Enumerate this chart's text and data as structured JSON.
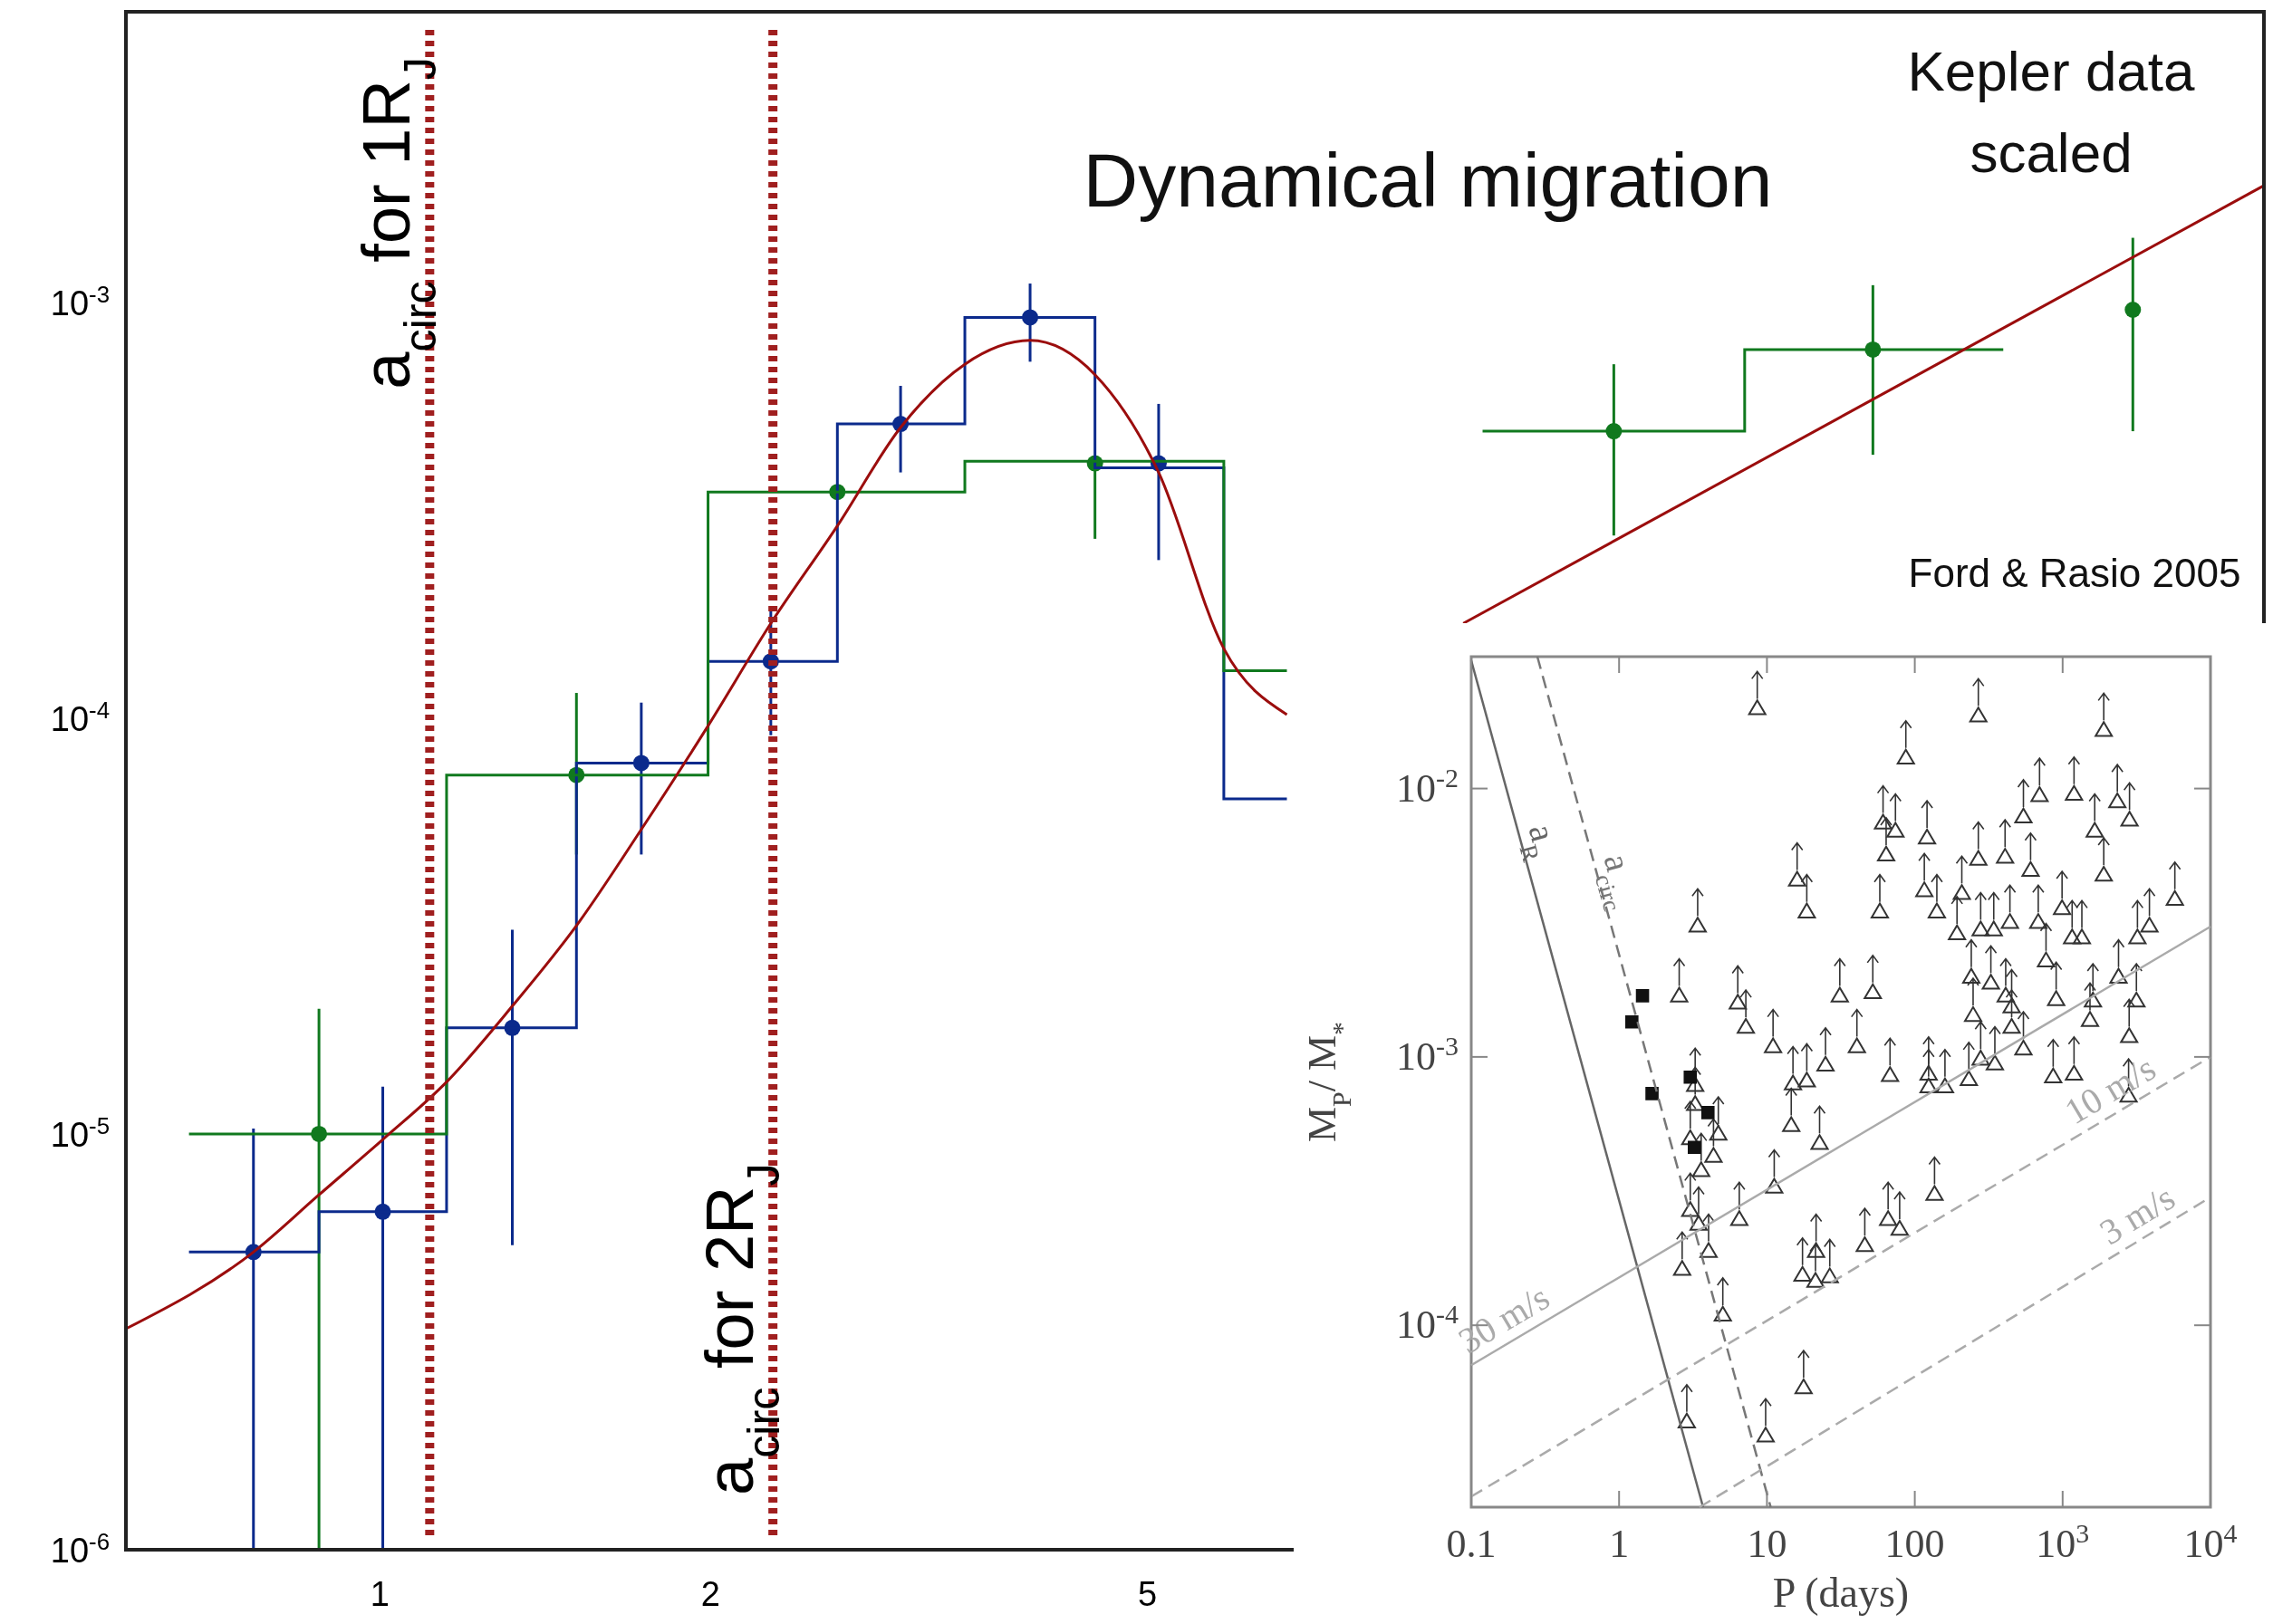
{
  "chart_data": [
    {
      "type": "line",
      "xlim": [
        0.587,
        52
      ],
      "ylim": [
        1e-06,
        0.005
      ],
      "log": "xy",
      "xticks": [
        1,
        2,
        5
      ],
      "yticks": [
        {
          "value": 1e-06,
          "label": "10$^{-6}$"
        },
        {
          "value": 1e-05,
          "label": "10$^{-5}$"
        },
        {
          "value": 0.0001,
          "label": "10$^{-4}$"
        },
        {
          "value": 0.001,
          "label": "10$^{-3}$"
        }
      ],
      "ref_lines": [
        {
          "axis": "x",
          "value": 1.11,
          "label": "a$_{circ}$ for 1R$_{J}$",
          "color": "#a01f1f",
          "line_style": "dotted"
        },
        {
          "axis": "x",
          "value": 2.28,
          "label": "a$_{circ}$ for 2R$_{J}$",
          "color": "#a01f1f",
          "line_style": "dotted"
        }
      ],
      "annotations": [
        "Dynamical migration",
        "Kepler data scaled",
        "Ford & Rasio 2005"
      ],
      "series": [
        {
          "type": "histogram",
          "color": "#0b2a8c",
          "bins": [
            0.67,
            0.88,
            1.15,
            1.51,
            1.99,
            2.61,
            3.41,
            4.48,
            5.87,
            6.7
          ],
          "values": [
            5.2e-06,
            6.5e-06,
            1.8e-05,
            7.8e-05,
            0.000137,
            0.00051,
            0.00092,
            0.0004,
            6.4e-05
          ]
        },
        {
          "type": "histogram",
          "color": "#10791e",
          "bins": [
            0.67,
            1.15,
            1.99,
            3.41,
            5.87,
            6.7
          ],
          "values": [
            1e-05,
            7.3e-05,
            0.00035,
            0.000415,
            0.00013
          ]
        },
        {
          "type": "histogram",
          "color": "#10791e",
          "bins": [
            10.1,
            17.5,
            30.1
          ],
          "values": [
            0.00049,
            0.00077
          ]
        },
        {
          "type": "line",
          "color": "#9b0d0d",
          "x": [
            0.587,
            0.767,
            0.878,
            1.006,
            1.152,
            1.32,
            1.514,
            1.73,
            1.986,
            2.27,
            2.61,
            2.98,
            3.41,
            3.91,
            4.48,
            5.12,
            5.87,
            6.7
          ],
          "values": [
            3.4e-06,
            5.2e-06,
            7.1e-06,
            9.7e-06,
            1.34e-05,
            2.03e-05,
            3.2e-05,
            5.4e-05,
            9.5e-05,
            0.000169,
            0.00029,
            0.0005,
            0.00071,
            0.00081,
            0.00067,
            0.00039,
            0.000147,
            0.000102
          ]
        },
        {
          "type": "line",
          "color": "#9b0d0d",
          "x": [
            9.7,
            52
          ],
          "values": [
            0.000169,
            0.00191
          ]
        },
        {
          "type": "scatter",
          "marker": "circle",
          "color": "#0b2a8c",
          "x": [
            0.767,
            1.006,
            1.32,
            1.73,
            2.27,
            2.98,
            3.91,
            5.12
          ],
          "values": [
            5.2e-06,
            6.5e-06,
            1.8e-05,
            7.8e-05,
            0.000137,
            0.00051,
            0.00092,
            0.00041
          ],
          "errors": [
            [
              1e-06,
              1.03e-05
            ],
            [
              1e-06,
              1.3e-05
            ],
            [
              5.4e-06,
              3.1e-05
            ],
            [
              4.7e-05,
              0.000109
            ],
            [
              9.1e-05,
              0.000184
            ],
            [
              0.00039,
              0.00063
            ],
            [
              0.00072,
              0.00111
            ],
            [
              0.00024,
              0.00057
            ]
          ]
        },
        {
          "type": "scatter",
          "marker": "circle",
          "color": "#10791e",
          "x": [
            0.88,
            1.51,
            2.61,
            4.48,
            13.3,
            22.9,
            39.5
          ],
          "values": [
            1e-05,
            7.3e-05,
            0.00035,
            0.00041,
            0.00049,
            0.00077,
            0.00096
          ],
          "errors": [
            [
              1e-06,
              2e-05
            ],
            [
              4.7e-05,
              0.000115
            ],
            null,
            [
              0.00027,
              0.00041
            ],
            [
              0.000275,
              0.00071
            ],
            [
              0.00043,
              0.0011
            ],
            [
              0.00049,
              0.00143
            ]
          ]
        }
      ]
    },
    {
      "type": "scatter",
      "xlabel": "P (days)",
      "ylabel": "M$_{P}$/ M$_{*}$",
      "xlim": [
        0.1,
        10000
      ],
      "ylim": [
        2.1e-05,
        0.031
      ],
      "log": "xy",
      "xticks": [
        0.1,
        1,
        10,
        100,
        {
          "value": 1000,
          "label": "10$^{3}$"
        },
        {
          "value": 10000,
          "label": "10$^{4}$"
        }
      ],
      "yticks": [
        {
          "value": 0.0001,
          "label": "10$^{-4}$"
        },
        {
          "value": 0.001,
          "label": "10$^{-3}$"
        },
        {
          "value": 0.01,
          "label": "10$^{-2}$"
        }
      ],
      "series": [
        {
          "type": "scatter",
          "marker": "triangle",
          "color": "#333333",
          "x": [
            8.6,
            16,
            18.6,
            3.4,
            2.55,
            6.35,
            7.2,
            11,
            15,
            18.6,
            24.9,
            31.1,
            40.6,
            52,
            14.6,
            22.7,
            11.2,
            6.5,
            45.9,
            17.4,
            21.5,
            21.3,
            26.6,
            2.67,
            4.03,
            5.03,
            17.7,
            2.87,
            9.8,
            3.27,
            3.03,
            4.35,
            4.69,
            3.59,
            3.03,
            3.45,
            3.27,
            269,
            1897,
            87,
            61,
            74,
            64,
            121,
            116,
            141,
            58,
            208,
            269,
            408,
            543,
            698,
            607,
            1194,
            1648,
            1897,
            2344,
            2834,
            5741,
            3864,
            3206,
            193,
            279,
            342,
            440,
            684,
            991,
            1159,
            1349,
            772,
            241,
            327,
            412,
            452,
            248,
            904,
            1603,
            2388,
            3155,
            2818,
            1531,
            452,
            543,
            348,
            279,
            232,
            160,
            124,
            124,
            68,
            863,
            1194,
            2793,
            66,
            79,
            136
          ],
          "values": [
            0.02,
            0.0046,
            0.0035,
            0.0031,
            0.0017,
            0.0016,
            0.0013,
            0.0011,
            0.0008,
            0.00082,
            0.00094,
            0.0017,
            0.0011,
            0.00175,
            0.00056,
            0.00048,
            0.00033,
            0.00025,
            0.0002,
            0.000155,
            0.00019,
            0.000147,
            0.000153,
            0.000163,
            0.00019,
            0.00011,
            5.9e-05,
            4.4e-05,
            3.9e-05,
            0.00067,
            0.0005,
            0.00043,
            0.00052,
            0.00038,
            0.00027,
            0.00024,
            0.00079,
            0.0188,
            0.0166,
            0.0131,
            0.0075,
            0.007,
            0.0057,
            0.0066,
            0.0042,
            0.0035,
            0.0035,
            0.0041,
            0.0055,
            0.0056,
            0.0079,
            0.0095,
            0.005,
            0.0096,
            0.007,
            0.0048,
            0.009,
            0.0077,
            0.0039,
            0.0031,
            0.0028,
            0.0029,
            0.003,
            0.003,
            0.0032,
            0.0032,
            0.0036,
            0.0028,
            0.0028,
            0.0023,
            0.002,
            0.0019,
            0.0017,
            0.00155,
            0.00144,
            0.00165,
            0.00163,
            0.002,
            0.00163,
            0.0012,
            0.00138,
            0.0013,
            0.00108,
            0.00095,
            0.00099,
            0.00083,
            0.00078,
            0.00078,
            0.00087,
            0.00086,
            0.00085,
            0.00087,
            0.00072,
            0.00025,
            0.00023,
            0.00031
          ]
        },
        {
          "type": "scatter",
          "marker": "square",
          "color": "#111111",
          "x": [
            1.22,
            1.44,
            1.67,
            3.03,
            3.99,
            3.23
          ],
          "values": [
            0.00135,
            0.00169,
            0.00073,
            0.00084,
            0.00062,
            0.00046
          ]
        },
        {
          "type": "line",
          "name": "a$_{R}$",
          "color": "#666666",
          "line_style": "solid",
          "x": [
            0.1,
            3.7
          ],
          "values": [
            0.03,
            2.1e-05
          ]
        },
        {
          "type": "line",
          "name": "a$_{circ}$",
          "color": "#777777",
          "line_style": "dashed",
          "x": [
            0.28,
            10.6
          ],
          "values": [
            0.031,
            2.1e-05
          ]
        },
        {
          "type": "line",
          "name": "30 m/s",
          "color": "#aaaaaa",
          "line_style": "solid",
          "x": [
            0.1,
            10000
          ],
          "values": [
            7.1e-05,
            0.00306
          ]
        },
        {
          "type": "line",
          "name": "10 m/s",
          "color": "#aaaaaa",
          "line_style": "dashed",
          "x": [
            0.1,
            10000
          ],
          "values": [
            2.3e-05,
            0.001
          ]
        },
        {
          "type": "line",
          "name": "3 m/s",
          "color": "#aaaaaa",
          "line_style": "dashed",
          "x": [
            3.5,
            10000
          ],
          "values": [
            2.1e-05,
            0.0003
          ]
        }
      ]
    }
  ]
}
